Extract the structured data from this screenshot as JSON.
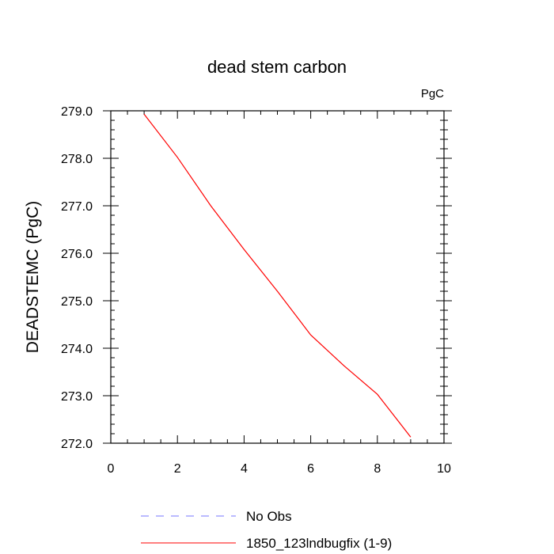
{
  "chart_data": {
    "type": "line",
    "title": "dead stem carbon",
    "units_label": "PgC",
    "xlabel": "",
    "ylabel": "DEADSTEMC  (PgC)",
    "xlim": [
      0,
      10
    ],
    "ylim": [
      272.0,
      279.0
    ],
    "x_ticks": [
      0,
      2,
      4,
      6,
      8,
      10
    ],
    "x_tick_labels": [
      "0",
      "2",
      "4",
      "6",
      "8",
      "10"
    ],
    "y_ticks": [
      272.0,
      273.0,
      274.0,
      275.0,
      276.0,
      277.0,
      278.0,
      279.0
    ],
    "y_tick_labels": [
      "272.0",
      "273.0",
      "274.0",
      "275.0",
      "276.0",
      "277.0",
      "278.0",
      "279.0"
    ],
    "grid": false,
    "legend_position": "bottom",
    "series": [
      {
        "name": "1850_123lndbugfix (1-9)",
        "color": "#ff0000",
        "dash": "solid",
        "x": [
          1,
          2,
          3,
          4,
          5,
          6,
          7,
          8,
          9
        ],
        "y": [
          278.93,
          278.02,
          277.0,
          276.08,
          275.2,
          274.28,
          273.63,
          273.03,
          272.13
        ]
      }
    ],
    "legend": [
      {
        "label": "No Obs",
        "color": "#7777ff",
        "dash": "dashed"
      },
      {
        "label": "1850_123lndbugfix (1-9)",
        "color": "#ff0000",
        "dash": "solid"
      }
    ]
  }
}
